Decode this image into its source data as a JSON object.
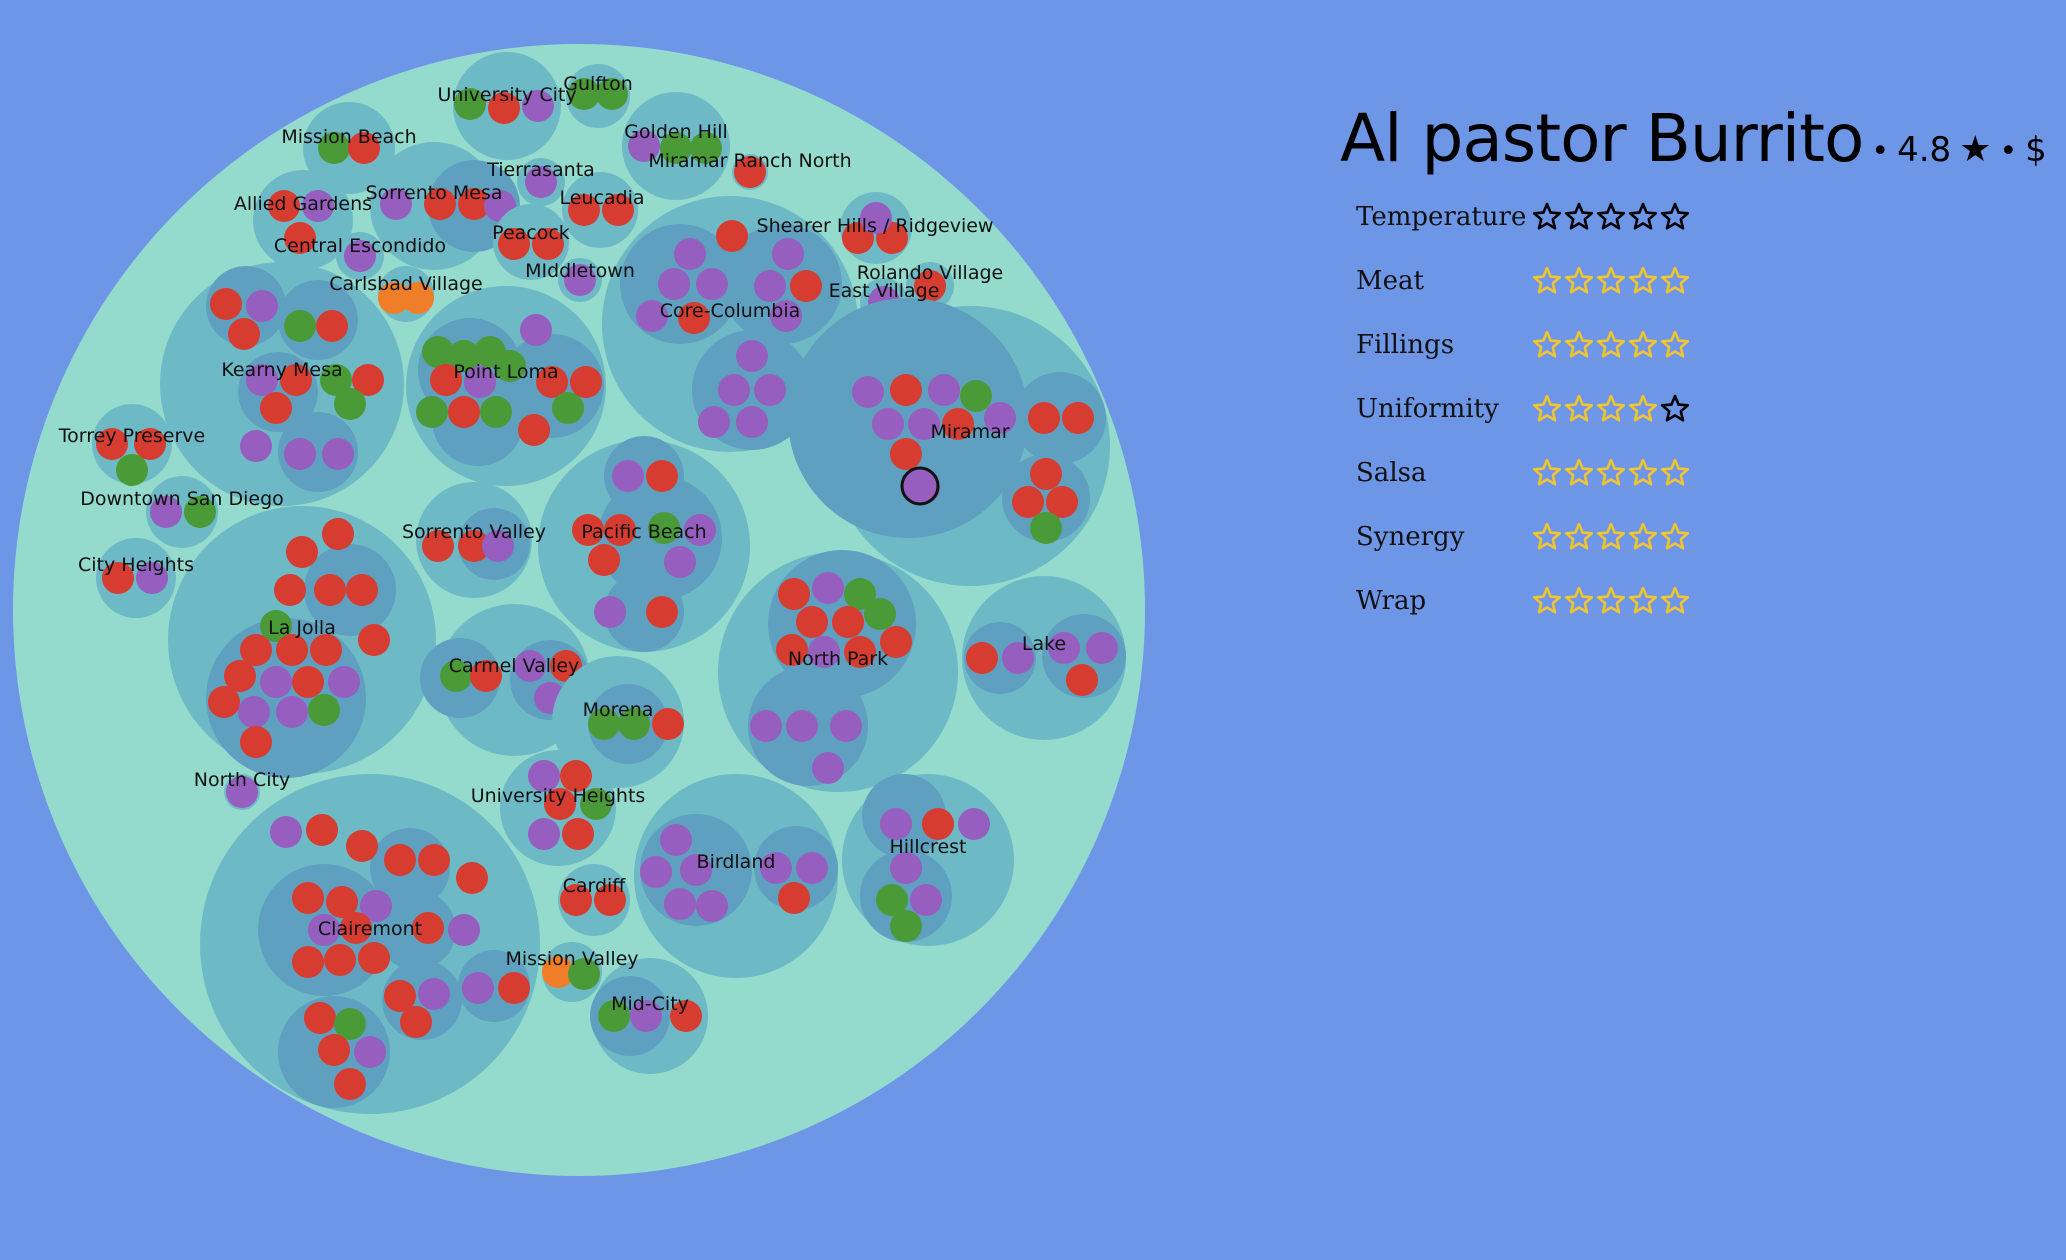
{
  "colors": {
    "background": "#6e96e6",
    "root_fill": "#94dbcd",
    "group_fill": "#6eb9c6",
    "subgroup_fill": "#5f9fc0",
    "red": "#d63c30",
    "purple": "#955ebf",
    "green": "#4a9a38",
    "orange": "#f07d28",
    "star_filled": "#f2c530",
    "star_empty": "#000000"
  },
  "item": {
    "title": "Al pastor Burrito",
    "rating": "4.8",
    "price": "$",
    "separator": "•"
  },
  "ratings": [
    {
      "label": "Temperature",
      "value": 0
    },
    {
      "label": "Meat",
      "value": 5
    },
    {
      "label": "Fillings",
      "value": 5
    },
    {
      "label": "Uniformity",
      "value": 4
    },
    {
      "label": "Salsa",
      "value": 5
    },
    {
      "label": "Synergy",
      "value": 5
    },
    {
      "label": "Wrap",
      "value": 5
    }
  ],
  "neighborhoods": [
    "University City",
    "Gulfton",
    "Mission Beach",
    "Golden Hill",
    "Miramar Ranch North",
    "Tierrasanta",
    "Allied Gardens",
    "Sorrento Mesa",
    "Leucadia",
    "Central Escondido",
    "Peacock",
    "Shearer Hills / Ridgeview",
    "Carlsbad Village",
    "MIddletown",
    "Rolando Village",
    "East Village",
    "Core-Columbia",
    "Kearny Mesa",
    "Point Loma",
    "Torrey Preserve",
    "Miramar",
    "Downtown San Diego",
    "Sorrento Valley",
    "Pacific Beach",
    "City Heights",
    "La Jolla",
    "Carmel Valley",
    "North Park",
    "Lake",
    "Morena",
    "North City",
    "University Heights",
    "Birdland",
    "Hillcrest",
    "Cardiff",
    "Clairemont",
    "Mission Valley",
    "Mid-City"
  ]
}
